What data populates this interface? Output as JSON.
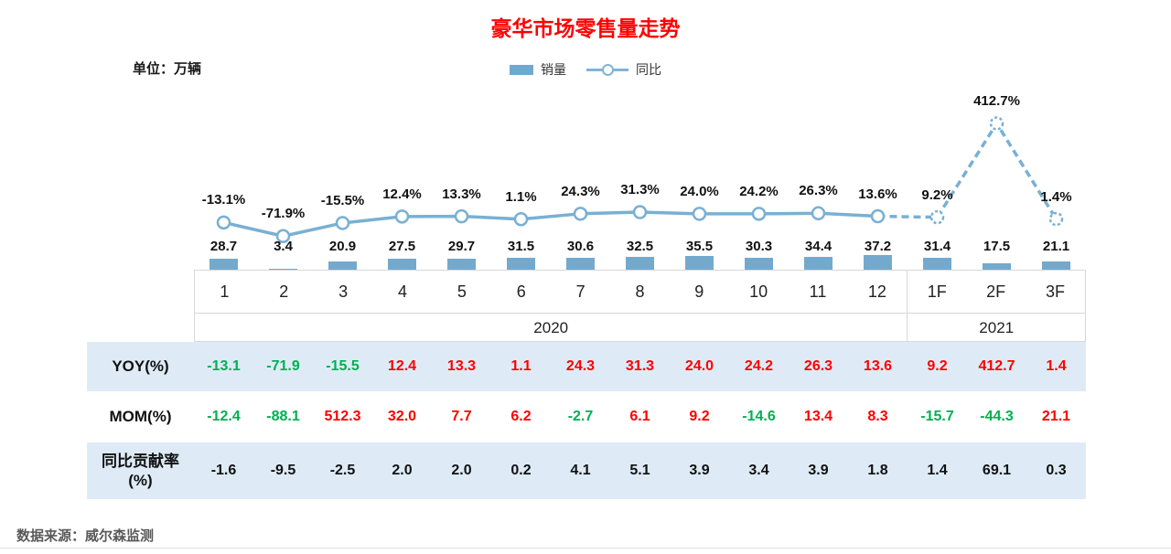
{
  "page": {
    "title": "豪华市场零售量走势",
    "unit_label": "单位：万辆",
    "source": "数据来源：威尔森监测"
  },
  "legend": {
    "bar_label": "销量",
    "line_label": "同比"
  },
  "chart_data": {
    "type": "bar+line",
    "categories": [
      "1",
      "2",
      "3",
      "4",
      "5",
      "6",
      "7",
      "8",
      "9",
      "10",
      "11",
      "12",
      "1F",
      "2F",
      "3F"
    ],
    "year_groups": [
      {
        "label": "2020",
        "span": 12
      },
      {
        "label": "2021",
        "span": 3
      }
    ],
    "bar_series": {
      "name": "销量",
      "unit": "万辆",
      "values": [
        28.7,
        3.4,
        20.9,
        27.5,
        29.7,
        31.5,
        30.6,
        32.5,
        35.5,
        30.3,
        34.4,
        37.2,
        31.4,
        17.5,
        21.1
      ]
    },
    "line_series": {
      "name": "同比",
      "values_pct": [
        -13.1,
        -71.9,
        -15.5,
        12.4,
        13.3,
        1.1,
        24.3,
        31.3,
        24.0,
        24.2,
        26.3,
        13.6,
        9.2,
        412.7,
        1.4
      ],
      "labels": [
        "-13.1%",
        "-71.9%",
        "-15.5%",
        "12.4%",
        "13.3%",
        "1.1%",
        "24.3%",
        "31.3%",
        "24.0%",
        "24.2%",
        "26.3%",
        "13.6%",
        "9.2%",
        "412.7%",
        "1.4%"
      ],
      "forecast_from_index": 12
    },
    "table": {
      "rows": [
        {
          "header": "YOY(%)",
          "colored": true,
          "values": [
            "-13.1",
            "-71.9",
            "-15.5",
            "12.4",
            "13.3",
            "1.1",
            "24.3",
            "31.3",
            "24.0",
            "24.2",
            "26.3",
            "13.6",
            "9.2",
            "412.7",
            "1.4"
          ]
        },
        {
          "header": "MOM(%)",
          "colored": true,
          "values": [
            "-12.4",
            "-88.1",
            "512.3",
            "32.0",
            "7.7",
            "6.2",
            "-2.7",
            "6.1",
            "9.2",
            "-14.6",
            "13.4",
            "8.3",
            "-15.7",
            "-44.3",
            "21.1"
          ]
        },
        {
          "header": "同比贡献率(%)",
          "colored": false,
          "values": [
            "-1.6",
            "-9.5",
            "-2.5",
            "2.0",
            "2.0",
            "0.2",
            "4.1",
            "5.1",
            "3.9",
            "3.4",
            "3.9",
            "1.8",
            "1.4",
            "69.1",
            "0.3"
          ]
        }
      ]
    }
  },
  "colors": {
    "title": "#ff0000",
    "series_blue": "#79b0d3",
    "positive": "#ff0000",
    "negative": "#00b050",
    "neutral": "#111111",
    "band_bg": "#deebf7"
  }
}
